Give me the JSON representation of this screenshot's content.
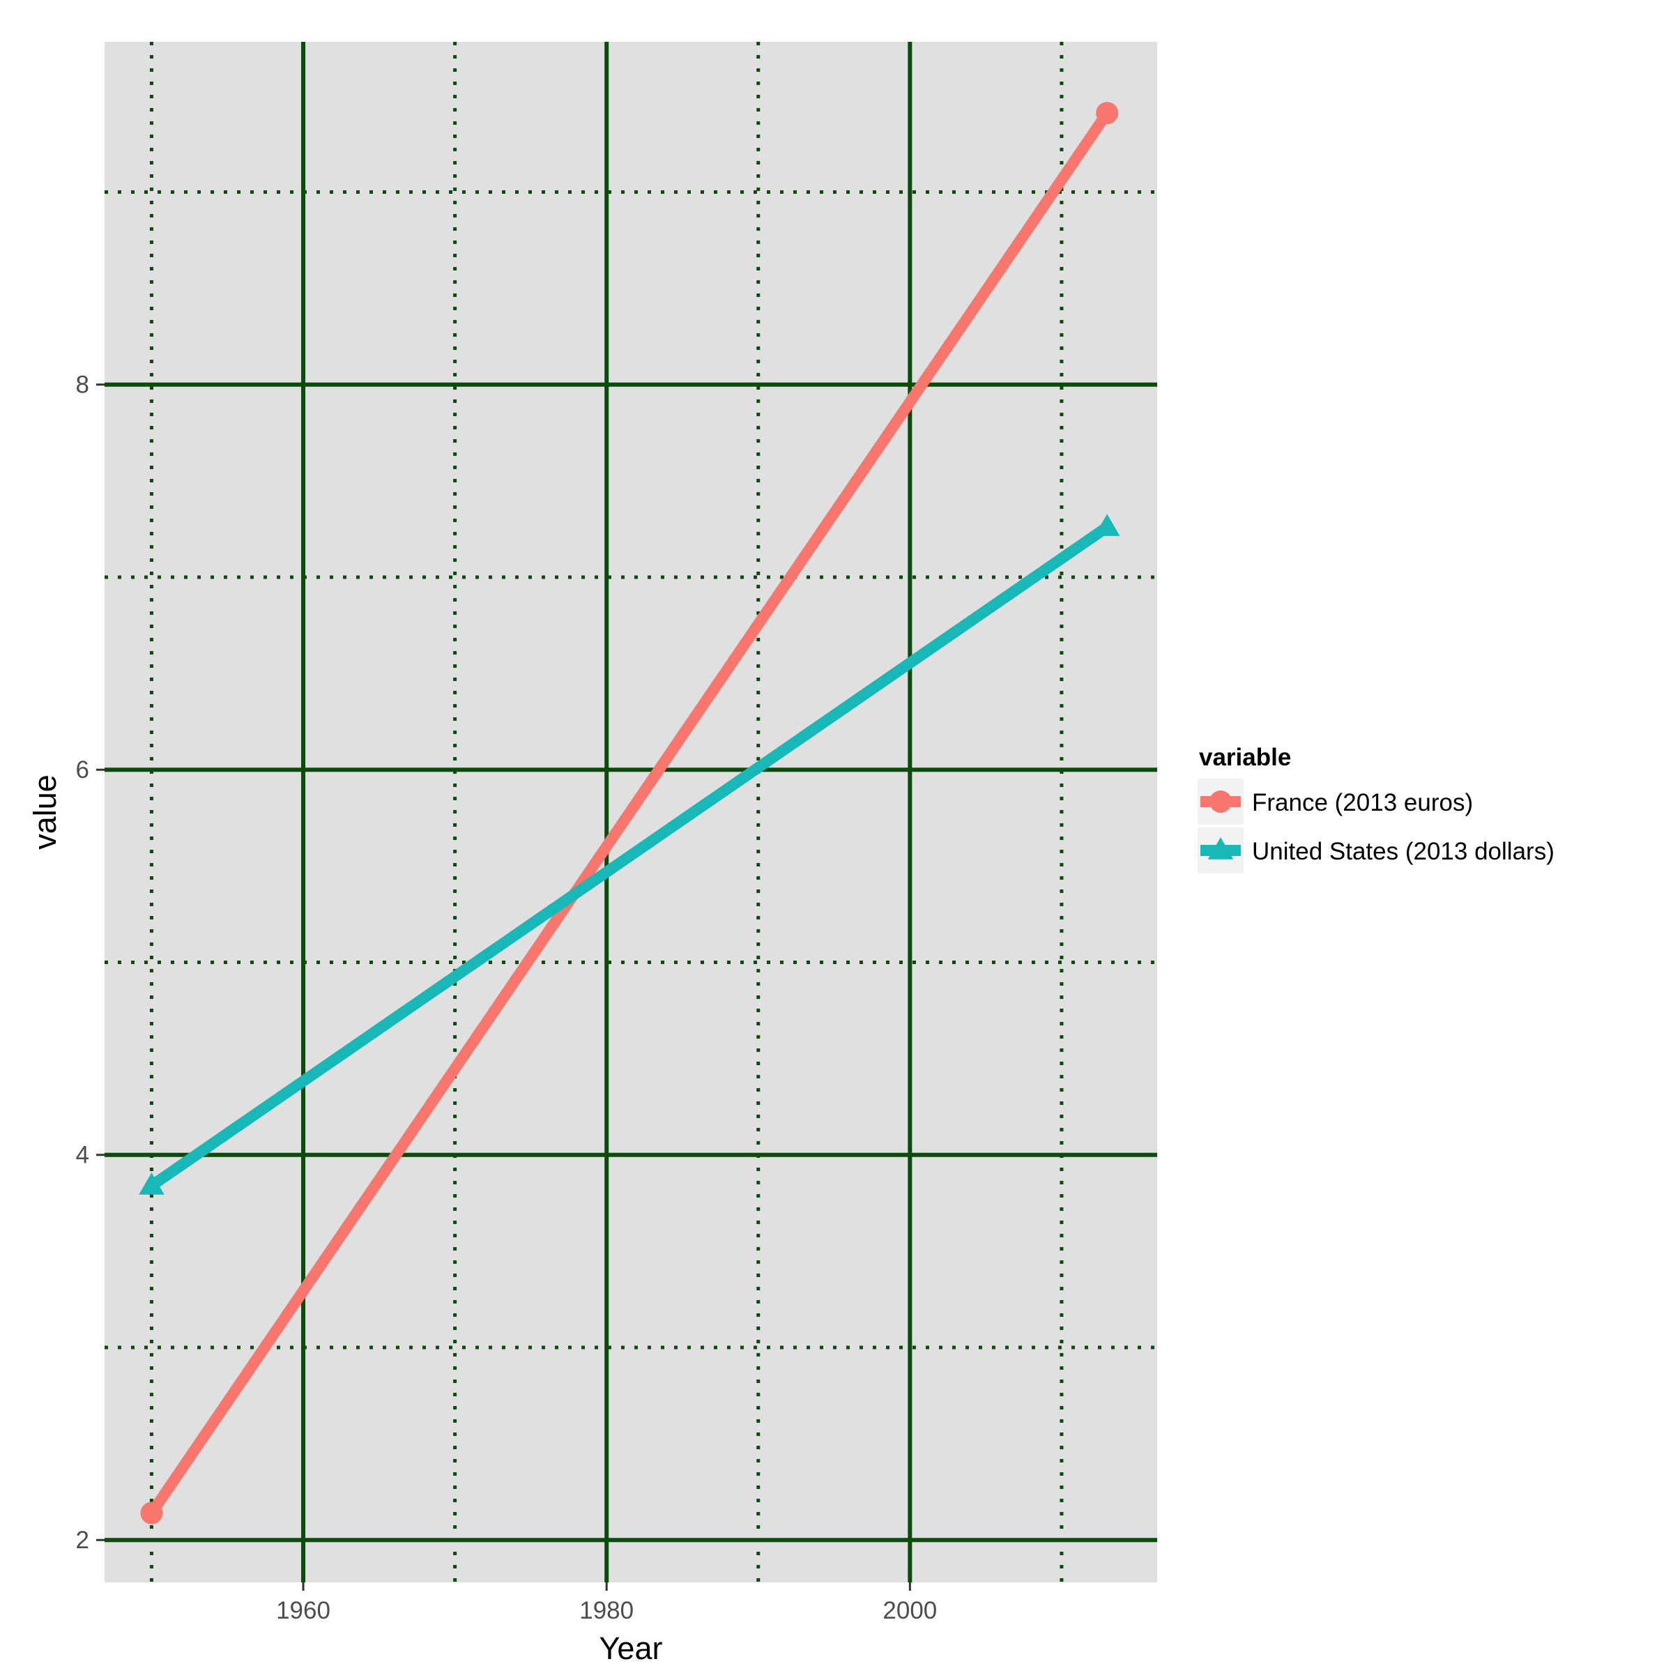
{
  "chart_data": {
    "type": "line",
    "xlabel": "Year",
    "ylabel": "value",
    "xlim": [
      1946.9,
      2016.3
    ],
    "ylim": [
      1.78,
      9.78
    ],
    "x_ticks": [
      1960,
      1980,
      2000
    ],
    "x_minor_ticks": [
      1950,
      1970,
      1990,
      2010
    ],
    "y_ticks": [
      2,
      4,
      6,
      8
    ],
    "y_minor_ticks": [
      3,
      5,
      7,
      9
    ],
    "grid": true,
    "panel_background": "#e0e0e0",
    "grid_color": "#0b4b0b",
    "legend": {
      "title": "variable",
      "position": "right"
    },
    "series": [
      {
        "name": "France (2013 euros)",
        "color": "#f8766d",
        "marker": "circle",
        "x": [
          1950,
          2013
        ],
        "y": [
          2.14,
          9.41
        ]
      },
      {
        "name": "United States (2013 dollars)",
        "color": "#19b8b8",
        "marker": "triangle",
        "x": [
          1950,
          2013
        ],
        "y": [
          3.84,
          7.26
        ]
      }
    ]
  }
}
